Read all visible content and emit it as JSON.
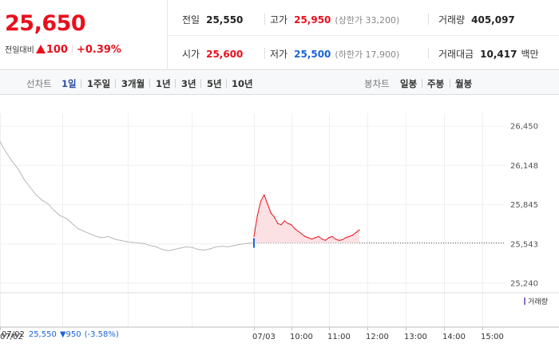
{
  "quote": {
    "price": "25,650",
    "change_label": "전일대비",
    "change_value": "100",
    "change_pct": "+0.39%",
    "prev_close_label": "전일",
    "prev_close": "25,550",
    "high_label": "고가",
    "high": "25,950",
    "upper_limit": "(상한가 33,200)",
    "volume_label": "거래량",
    "volume": "405,097",
    "open_label": "시가",
    "open": "25,600",
    "low_label": "저가",
    "low": "25,500",
    "lower_limit": "(하한가 17,900)",
    "trade_value_label": "거래대금",
    "trade_value": "10,417",
    "trade_value_unit": "백만",
    "colors": {
      "up": "#e8101d",
      "down": "#1c64d6"
    }
  },
  "tabs": {
    "line_label": "선차트",
    "line_periods": [
      "1일",
      "1주일",
      "3개월",
      "1년",
      "3년",
      "5년",
      "10년"
    ],
    "selected": "1일",
    "candle_label": "봉차트",
    "candle_periods": [
      "일봉",
      "주봉",
      "월봉"
    ]
  },
  "chart_data": {
    "type": "line",
    "y_ticks": [
      "26,450",
      "26,148",
      "25,845",
      "25,543",
      "25,240"
    ],
    "ylim": [
      25240,
      26450
    ],
    "reference_price": 25550,
    "x_ticks": [
      "07/02",
      "07/03",
      "10:00",
      "11:00",
      "12:00",
      "13:00",
      "14:00",
      "15:00"
    ],
    "volume_legend": "거래량",
    "prev_day": {
      "date": "07/02",
      "price": "25,550",
      "change": "▼950",
      "pct": "(-3.58%)"
    },
    "series": [
      {
        "session": "07/02",
        "color": "#b8b8b8",
        "values": [
          26330,
          26250,
          26180,
          26120,
          26040,
          25980,
          25920,
          25880,
          25850,
          25800,
          25760,
          25740,
          25700,
          25660,
          25640,
          25620,
          25600,
          25590,
          25600,
          25580,
          25570,
          25560,
          25555,
          25550,
          25545,
          25530,
          25520,
          25500,
          25490,
          25500,
          25510,
          25520,
          25515,
          25500,
          25495,
          25505,
          25520,
          25525,
          25520,
          25530,
          25540,
          25545,
          25550
        ]
      },
      {
        "session": "07/03",
        "color": "#e8101d",
        "values": [
          25600,
          25760,
          25870,
          25920,
          25850,
          25780,
          25750,
          25700,
          25690,
          25720,
          25700,
          25690,
          25660,
          25640,
          25620,
          25600,
          25590,
          25580,
          25590,
          25600,
          25580,
          25570,
          25590,
          25600,
          25580,
          25570,
          25575,
          25590,
          25600,
          25610,
          25630,
          25650
        ]
      }
    ]
  }
}
